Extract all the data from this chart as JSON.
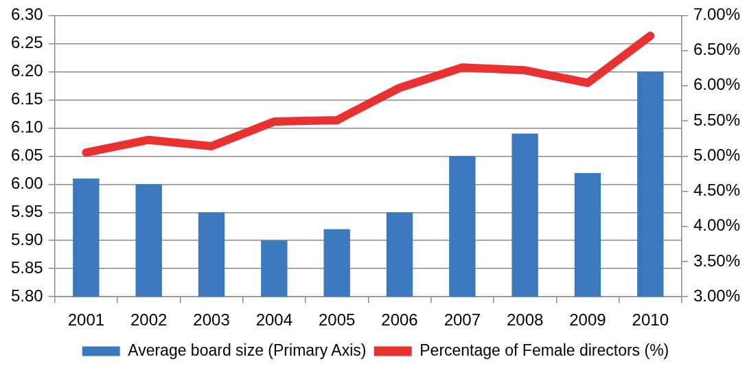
{
  "chart_data": {
    "type": "bar",
    "categories": [
      "2001",
      "2002",
      "2003",
      "2004",
      "2005",
      "2006",
      "2007",
      "2008",
      "2009",
      "2010"
    ],
    "series": [
      {
        "name": "Average board size (Primary Axis)",
        "type": "bar",
        "color": "#3b78bd",
        "values": [
          6.01,
          6.0,
          5.95,
          5.9,
          5.92,
          5.95,
          6.05,
          6.09,
          6.02,
          6.2
        ]
      },
      {
        "name": "Percentage of Female directors (%)",
        "type": "line",
        "axis": "y2",
        "color": "#ea3131",
        "values": [
          5.05,
          5.23,
          5.14,
          5.49,
          5.51,
          5.97,
          6.26,
          6.22,
          6.04,
          6.71
        ]
      }
    ],
    "ylim": [
      5.8,
      6.3
    ],
    "yticks": [
      {
        "value": 5.8,
        "label": "5.80"
      },
      {
        "value": 5.85,
        "label": "5.85"
      },
      {
        "value": 5.9,
        "label": "5.90"
      },
      {
        "value": 5.95,
        "label": "5.95"
      },
      {
        "value": 6.0,
        "label": "6.00"
      },
      {
        "value": 6.05,
        "label": "6.05"
      },
      {
        "value": 6.1,
        "label": "6.10"
      },
      {
        "value": 6.15,
        "label": "6.15"
      },
      {
        "value": 6.2,
        "label": "6.20"
      },
      {
        "value": 6.25,
        "label": "6.25"
      },
      {
        "value": 6.3,
        "label": "6.30"
      }
    ],
    "y2lim": [
      3,
      7
    ],
    "y2ticks": [
      {
        "value": 3,
        "label": "3.00%"
      },
      {
        "value": 3.5,
        "label": "3.50%"
      },
      {
        "value": 4,
        "label": "4.00%"
      },
      {
        "value": 4.5,
        "label": "4.50%"
      },
      {
        "value": 5,
        "label": "5.00%"
      },
      {
        "value": 5.5,
        "label": "5.50%"
      },
      {
        "value": 6,
        "label": "6.00%"
      },
      {
        "value": 6.5,
        "label": "6.50%"
      },
      {
        "value": 7,
        "label": "7.00%"
      }
    ],
    "grid": "y",
    "legend": "bottom"
  }
}
